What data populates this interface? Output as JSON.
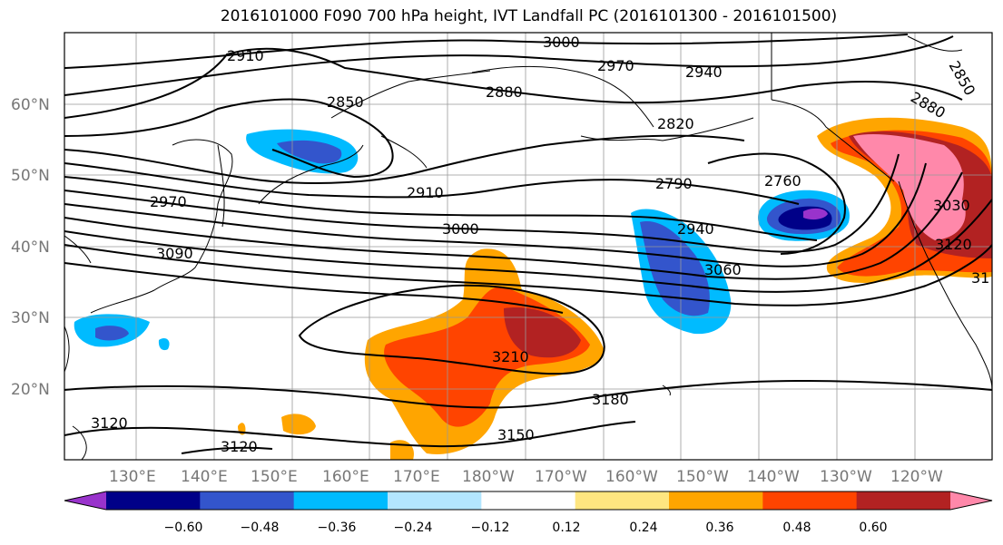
{
  "title": "2016101000 F090 700 hPa height, IVT Landfall PC (2016101300 - 2016101500)",
  "lat_labels": [
    "60°N",
    "50°N",
    "40°N",
    "30°N",
    "20°N"
  ],
  "lon_labels": [
    "130°E",
    "140°E",
    "150°E",
    "160°E",
    "170°E",
    "180°W",
    "170°W",
    "160°W",
    "150°W",
    "140°W",
    "130°W",
    "120°W"
  ],
  "contour_labels": [
    "2910",
    "3000",
    "2970",
    "2940",
    "2850",
    "2880",
    "2820",
    "2850",
    "2880",
    "2760",
    "2790",
    "2910",
    "2970",
    "3000",
    "2940",
    "3090",
    "3030",
    "3120",
    "31",
    "3060",
    "3210",
    "3180",
    "3120",
    "3150",
    "3120"
  ],
  "colorbar": {
    "ticks": [
      "−0.60",
      "−0.48",
      "−0.36",
      "−0.24",
      "−0.12",
      "0.12",
      "0.24",
      "0.36",
      "0.48",
      "0.60"
    ],
    "colors": [
      "#9933cc",
      "#000088",
      "#3355cc",
      "#00bbff",
      "#b3e6ff",
      "#ffffff",
      "#ffe680",
      "#ffa500",
      "#ff4400",
      "#b22222",
      "#ff88aa"
    ]
  }
}
